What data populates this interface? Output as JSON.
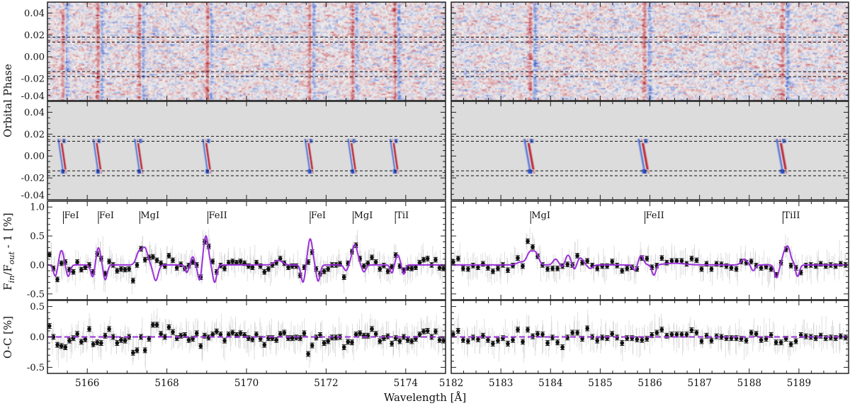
{
  "chart_data": {
    "type": "scatter",
    "title": "",
    "xlabel": "Wavelength [Å]",
    "ylabels": {
      "maps": "Orbital Phase",
      "transmission": {
        "F": "F",
        "in": "in",
        "mid": "/F",
        "out": "out",
        "tail": " - 1 [%]"
      },
      "residuals": "O-C [%]"
    },
    "colors": {
      "model": "#9b30d9",
      "points": "#111111",
      "cloud": "#bdbdbd",
      "model_bg": "#dcdcdc",
      "red": "#b2182b",
      "blue": "#2c4fc9"
    },
    "phase_ylim": [
      -0.04,
      0.05
    ],
    "phase_ticks": [
      "0.04",
      "0.02",
      "0.00",
      "-0.02",
      "-0.04"
    ],
    "phase_tick_values": [
      0.04,
      0.02,
      0.0,
      -0.02,
      -0.04
    ],
    "transit_dashed_phases": [
      0.018,
      0.0135,
      -0.0135,
      -0.018
    ],
    "transmission_ylim": [
      -0.6,
      1.1
    ],
    "transmission_ticks": [
      "1.0",
      "0.5",
      "0.0",
      "-0.5"
    ],
    "transmission_tick_values": [
      1.0,
      0.5,
      0.0,
      -0.5
    ],
    "residual_ylim": [
      -0.6,
      0.6
    ],
    "residual_ticks": [
      "0.5",
      "0.0",
      "-0.5"
    ],
    "residual_tick_values": [
      0.5,
      0.0,
      -0.5
    ],
    "panels": [
      {
        "name": "left",
        "xlim": [
          5165,
          5175
        ],
        "xticks": [
          "5166",
          "5168",
          "5170",
          "5172",
          "5174"
        ],
        "xtick_values": [
          5166,
          5168,
          5170,
          5172,
          5174
        ],
        "lines": [
          {
            "label": "FeI",
            "x": 5165.4
          },
          {
            "label": "FeI",
            "x": 5166.28
          },
          {
            "label": "MgI",
            "x": 5167.32
          },
          {
            "label": "FeII",
            "x": 5169.03
          },
          {
            "label": "FeI",
            "x": 5171.6
          },
          {
            "label": "MgI",
            "x": 5172.68
          },
          {
            "label": "TiI",
            "x": 5173.74
          }
        ],
        "x_start": 5165.05,
        "x_step": 0.1,
        "transmission": [
          0.18,
          -0.06,
          -0.25,
          0.03,
          0.05,
          -0.08,
          -0.12,
          0.05,
          -0.08,
          -0.04,
          0.0,
          -0.12,
          0.19,
          0.11,
          -0.15,
          0.06,
          0.0,
          -0.1,
          -0.07,
          -0.08,
          -0.07,
          -0.27,
          0.0,
          0.28,
          0.09,
          0.13,
          0.14,
          0.08,
          0.03,
          -0.02,
          0.16,
          0.08,
          -0.05,
          0.01,
          -0.06,
          -0.01,
          0.05,
          0.0,
          -0.21,
          0.4,
          0.32,
          0.06,
          -0.12,
          -0.01,
          -0.06,
          0.04,
          0.06,
          0.04,
          0.06,
          0.03,
          -0.02,
          -0.04,
          0.04,
          -0.02,
          -0.12,
          -0.07,
          0.0,
          0.04,
          0.11,
          0.03,
          -0.04,
          -0.02,
          -0.02,
          -0.18,
          -0.04,
          0.05,
          0.22,
          -0.07,
          -0.15,
          -0.11,
          -0.07,
          0.0,
          0.0,
          0.02,
          -0.21,
          0.03,
          0.23,
          0.34,
          0.11,
          -0.02,
          0.03,
          0.13,
          0.05,
          -0.07,
          -0.01,
          -0.11,
          -0.03,
          0.17,
          -0.02,
          -0.09,
          -0.05,
          -0.06,
          -0.04,
          0.04,
          0.09,
          0.11,
          0.0,
          0.09,
          -0.05,
          -0.06
        ],
        "residuals": [
          0.18,
          0.0,
          -0.13,
          -0.15,
          -0.17,
          -0.06,
          -0.02,
          0.05,
          -0.08,
          -0.04,
          0.13,
          -0.12,
          -0.09,
          -0.1,
          0.02,
          0.13,
          0.0,
          -0.1,
          -0.05,
          -0.06,
          0.0,
          -0.26,
          -0.22,
          0.0,
          -0.22,
          -0.03,
          0.2,
          0.2,
          0.05,
          0.0,
          0.16,
          0.08,
          -0.02,
          0.02,
          0.03,
          -0.05,
          -0.03,
          0.06,
          -0.15,
          0.02,
          -0.01,
          0.04,
          0.09,
          0.04,
          -0.06,
          0.04,
          0.07,
          0.03,
          0.06,
          0.03,
          -0.02,
          -0.04,
          0.04,
          -0.03,
          -0.13,
          -0.02,
          -0.02,
          -0.05,
          0.05,
          0.07,
          -0.02,
          -0.02,
          -0.01,
          -0.02,
          0.06,
          -0.28,
          -0.14,
          -0.01,
          0.03,
          -0.1,
          -0.07,
          -0.01,
          -0.01,
          0.0,
          -0.17,
          -0.08,
          -0.09,
          0.04,
          0.06,
          0.02,
          0.02,
          0.13,
          0.05,
          -0.07,
          -0.02,
          0.01,
          -0.11,
          -0.02,
          -0.07,
          0.0,
          -0.05,
          -0.07,
          -0.03,
          0.04,
          0.09,
          0.1,
          0.0,
          0.09,
          -0.05,
          -0.06
        ],
        "model_components": [
          [
            5165.35,
            0.25,
            0.06
          ],
          [
            5165.2,
            -0.2,
            0.05
          ],
          [
            5165.52,
            -0.2,
            0.05
          ],
          [
            5166.28,
            0.3,
            0.06
          ],
          [
            5166.14,
            -0.22,
            0.05
          ],
          [
            5166.45,
            -0.26,
            0.05
          ],
          [
            5167.3,
            0.22,
            0.07
          ],
          [
            5167.45,
            0.28,
            0.07
          ],
          [
            5167.72,
            -0.27,
            0.06
          ],
          [
            5168.65,
            0.14,
            0.04
          ],
          [
            5168.5,
            -0.13,
            0.04
          ],
          [
            5168.8,
            -0.13,
            0.04
          ],
          [
            5168.98,
            0.5,
            0.06
          ],
          [
            5168.84,
            -0.18,
            0.04
          ],
          [
            5169.2,
            -0.3,
            0.05
          ],
          [
            5170.8,
            0.08,
            0.1
          ],
          [
            5171.6,
            0.45,
            0.06
          ],
          [
            5171.42,
            -0.3,
            0.05
          ],
          [
            5171.8,
            -0.28,
            0.05
          ],
          [
            5172.72,
            0.35,
            0.07
          ],
          [
            5172.5,
            -0.1,
            0.05
          ],
          [
            5172.95,
            -0.12,
            0.05
          ],
          [
            5173.8,
            0.17,
            0.05
          ],
          [
            5173.65,
            -0.14,
            0.04
          ],
          [
            5173.95,
            -0.16,
            0.04
          ]
        ]
      },
      {
        "name": "right",
        "xlim": [
          5182,
          5190
        ],
        "xticks": [
          "5182",
          "5183",
          "5184",
          "5185",
          "5186",
          "5187",
          "5188",
          "5189"
        ],
        "xtick_values": [
          5182,
          5183,
          5184,
          5185,
          5186,
          5187,
          5188,
          5189
        ],
        "lines": [
          {
            "label": "MgI",
            "x": 5183.6
          },
          {
            "label": "FeII",
            "x": 5185.9
          },
          {
            "label": "TiII",
            "x": 5188.68
          }
        ],
        "x_start": 5182.04,
        "x_step": 0.1,
        "transmission": [
          0.05,
          0.11,
          -0.06,
          -0.07,
          -0.01,
          -0.04,
          0.02,
          -0.05,
          -0.11,
          -0.06,
          0.0,
          -0.09,
          -0.01,
          0.12,
          -0.02,
          0.41,
          0.31,
          0.15,
          0.0,
          -0.07,
          -0.06,
          -0.06,
          -0.02,
          0.01,
          0.0,
          0.16,
          0.04,
          0.07,
          -0.01,
          -0.06,
          -0.02,
          -0.02,
          0.06,
          -0.01,
          -0.1,
          -0.06,
          -0.04,
          -0.07,
          0.12,
          0.11,
          -0.04,
          -0.01,
          0.12,
          0.04,
          0.07,
          0.07,
          0.07,
          0.02,
          0.11,
          0.08,
          -0.07,
          0.02,
          -0.07,
          0.02,
          0.01,
          -0.02,
          -0.05,
          -0.07,
          0.06,
          0.04,
          0.06,
          -0.01,
          -0.05,
          -0.03,
          -0.07,
          -0.17,
          0.04,
          0.27,
          -0.01,
          -0.05,
          -0.13,
          -0.01,
          0.0,
          -0.02,
          0.02,
          -0.02,
          0.0,
          -0.02,
          0.02,
          0.0
        ],
        "residuals": [
          0.04,
          0.1,
          -0.05,
          -0.07,
          -0.01,
          -0.04,
          0.02,
          -0.05,
          -0.11,
          -0.06,
          -0.02,
          -0.11,
          -0.05,
          0.12,
          -0.08,
          0.12,
          0.01,
          0.05,
          0.04,
          -0.1,
          -0.01,
          -0.09,
          -0.17,
          -0.01,
          0.07,
          0.07,
          -0.03,
          0.14,
          0.0,
          -0.06,
          -0.01,
          -0.02,
          0.05,
          -0.01,
          -0.1,
          -0.02,
          -0.02,
          -0.04,
          -0.05,
          -0.03,
          0.03,
          0.07,
          0.12,
          0.02,
          0.04,
          0.04,
          0.04,
          0.04,
          0.11,
          0.07,
          -0.07,
          0.02,
          -0.06,
          0.01,
          0.0,
          -0.02,
          -0.02,
          -0.02,
          -0.03,
          -0.06,
          0.07,
          0.05,
          -0.05,
          -0.03,
          0.03,
          -0.09,
          -0.09,
          -0.03,
          -0.12,
          -0.07,
          0.03,
          0.01,
          0.0,
          -0.02,
          0.02,
          -0.02,
          -0.01,
          -0.02,
          0.01,
          -0.01
        ],
        "model_components": [
          [
            5183.58,
            0.2,
            0.06
          ],
          [
            5183.7,
            0.2,
            0.06
          ],
          [
            5183.4,
            0.05,
            0.08
          ],
          [
            5184.1,
            0.1,
            0.05
          ],
          [
            5184.25,
            -0.06,
            0.04
          ],
          [
            5184.35,
            0.17,
            0.06
          ],
          [
            5184.48,
            -0.1,
            0.04
          ],
          [
            5184.6,
            0.12,
            0.06
          ],
          [
            5184.8,
            -0.06,
            0.05
          ],
          [
            5185.82,
            0.16,
            0.05
          ],
          [
            5185.7,
            -0.1,
            0.04
          ],
          [
            5186.08,
            -0.18,
            0.04
          ],
          [
            5186.5,
            0.03,
            0.2
          ],
          [
            5187.9,
            0.1,
            0.06
          ],
          [
            5188.08,
            -0.1,
            0.04
          ],
          [
            5188.7,
            0.15,
            0.04
          ],
          [
            5188.78,
            0.3,
            0.05
          ],
          [
            5188.55,
            -0.22,
            0.04
          ],
          [
            5188.9,
            0.05,
            0.03
          ],
          [
            5188.97,
            -0.2,
            0.04
          ]
        ]
      }
    ]
  }
}
